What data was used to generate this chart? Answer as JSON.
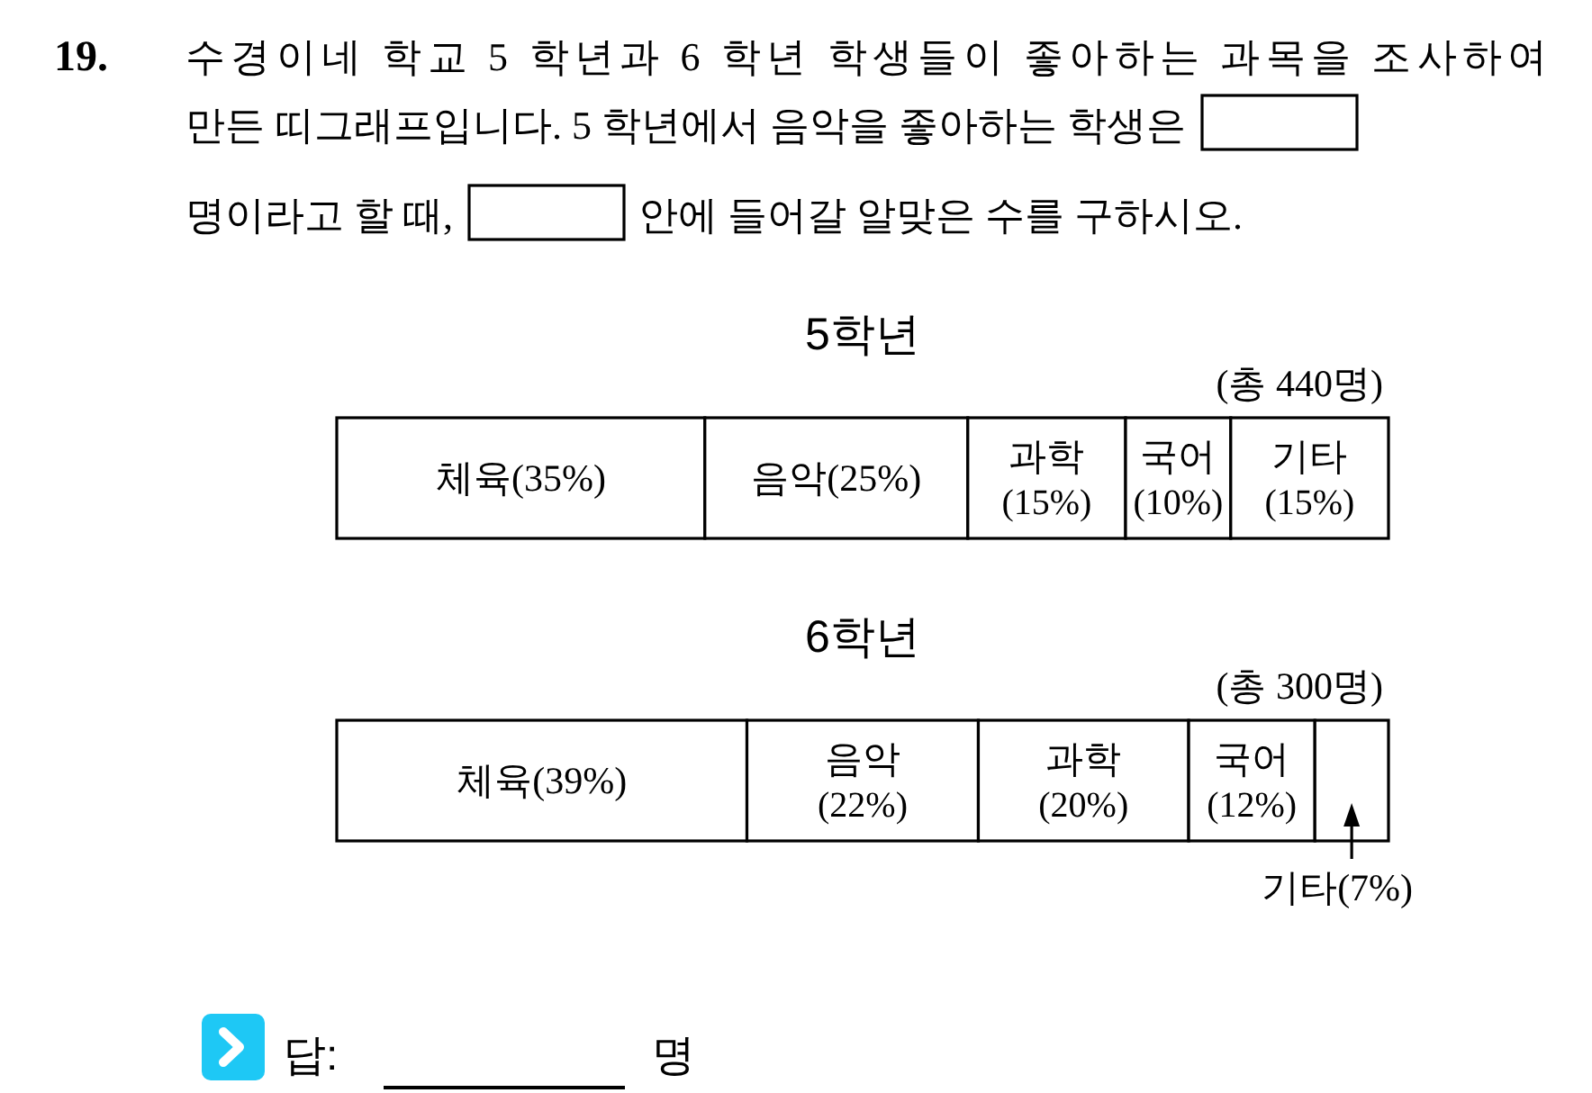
{
  "chart_data": [
    {
      "type": "bar",
      "orientation": "horizontal",
      "stacked": true,
      "title": "5학년",
      "subtitle": "(총 440명)",
      "categories": [
        null
      ],
      "xlim": [
        0,
        100
      ],
      "series": [
        {
          "name": "체육",
          "color": "#ffffff",
          "values": [
            35
          ],
          "value_labels": [
            "(35%)"
          ]
        },
        {
          "name": "음악",
          "color": "#ffffff",
          "values": [
            25
          ],
          "value_labels": [
            "(25%)"
          ]
        },
        {
          "name": "과학",
          "color": "#ffffff",
          "values": [
            15
          ],
          "value_labels": [
            "(15%)"
          ]
        },
        {
          "name": "국어",
          "color": "#ffffff",
          "values": [
            10
          ],
          "value_labels": [
            "(10%)"
          ]
        },
        {
          "name": "기타",
          "color": "#ffffff",
          "values": [
            15
          ],
          "value_labels": [
            "(15%)"
          ]
        }
      ],
      "annotations": [
        "19.",
        "수경이네 학교 5 학년과 6 학년 학생들이 좋아하는 과목을 조사하여",
        "만든 띠그래프입니다. 5 학년에서 음악을 좋아하는 학생은",
        "명이라고 할 때,",
        "안에 들어갈 알맞은 수를 구하시오."
      ]
    },
    {
      "type": "bar",
      "orientation": "horizontal",
      "stacked": true,
      "title": "6학년",
      "subtitle": "(총 300명)",
      "categories": [
        null
      ],
      "xlim": [
        0,
        100
      ],
      "series": [
        {
          "name": "체육",
          "color": "#ffffff",
          "values": [
            39
          ],
          "value_labels": [
            "(39%)"
          ]
        },
        {
          "name": "음악",
          "color": "#ffffff",
          "values": [
            22
          ],
          "value_labels": [
            "(22%)"
          ]
        },
        {
          "name": "과학",
          "color": "#ffffff",
          "values": [
            20
          ],
          "value_labels": [
            "(20%)"
          ]
        },
        {
          "name": "국어",
          "color": "#ffffff",
          "values": [
            12
          ],
          "value_labels": [
            "(12%)"
          ]
        },
        {
          "name": "기타",
          "color": "#ffffff",
          "values": [
            7
          ],
          "value_labels": [
            "(7%)"
          ]
        }
      ],
      "annotations": [
        "답:",
        "명"
      ]
    }
  ]
}
